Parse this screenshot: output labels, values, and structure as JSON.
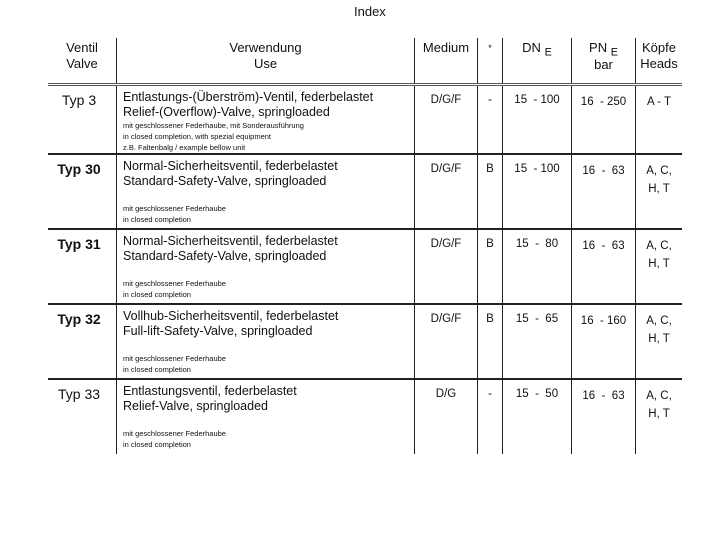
{
  "title": "Index",
  "headers": {
    "valve": [
      "Ventil",
      "Valve"
    ],
    "use": [
      "Verwendung",
      "Use"
    ],
    "medium": "Medium",
    "star": "*",
    "dn": "DN",
    "dn_sub": "E",
    "pn": "PN",
    "pn_sub": "E",
    "pn_unit": "bar",
    "heads": [
      "Köpfe",
      "Heads"
    ]
  },
  "rows": [
    {
      "type": "Typ  3",
      "bold": false,
      "use": [
        "Entlastungs-(Überström)-Ventil, federbelastet",
        "Relief-(Overflow)-Valve, springloaded"
      ],
      "notes": [
        "mit geschlossener Federhaube, mit Sonderausführung",
        "in closed completion, with spezial equipment",
        "z.B. Faltenbalg / example bellow unit"
      ],
      "medium": "D/G/F",
      "star": "-",
      "dn": "15  - 100",
      "pn": "16  - 250",
      "heads": [
        "A - T",
        ""
      ]
    },
    {
      "type": "Typ 30",
      "bold": true,
      "use": [
        "Normal-Sicherheitsventil, federbelastet",
        "Standard-Safety-Valve, springloaded"
      ],
      "notes": [
        "mit geschlossener Federhaube",
        "in closed completion"
      ],
      "medium": "D/G/F",
      "star": "B",
      "dn": "15  - 100",
      "pn": "16  -  63",
      "heads": [
        "A, C,",
        "H, T"
      ]
    },
    {
      "type": "Typ 31",
      "bold": true,
      "use": [
        "Normal-Sicherheitsventil, federbelastet",
        "Standard-Safety-Valve, springloaded"
      ],
      "notes": [
        "mit geschlossener Federhaube",
        "in closed completion"
      ],
      "medium": "D/G/F",
      "star": "B",
      "dn": "15  -  80",
      "pn": "16  -  63",
      "heads": [
        "A, C,",
        "H, T"
      ]
    },
    {
      "type": "Typ 32",
      "bold": true,
      "use": [
        "Vollhub-Sicherheitsventil, federbelastet",
        "Full-lift-Safety-Valve, springloaded"
      ],
      "notes": [
        "mit geschlossener Federhaube",
        "in closed completion"
      ],
      "medium": "D/G/F",
      "star": "B",
      "dn": "15  -  65",
      "pn": "16  - 160",
      "heads": [
        "A, C,",
        "H, T"
      ]
    },
    {
      "type": "Typ 33",
      "bold": false,
      "use": [
        "Entlastungsventil, federbelastet",
        "Relief-Valve, springloaded"
      ],
      "notes": [
        "mit geschlossener Federhaube",
        "in closed completion"
      ],
      "medium": "D/G",
      "star": "-",
      "dn": "15  -  50",
      "pn": "16  -  63",
      "heads": [
        "A, C,",
        "H, T"
      ]
    }
  ]
}
